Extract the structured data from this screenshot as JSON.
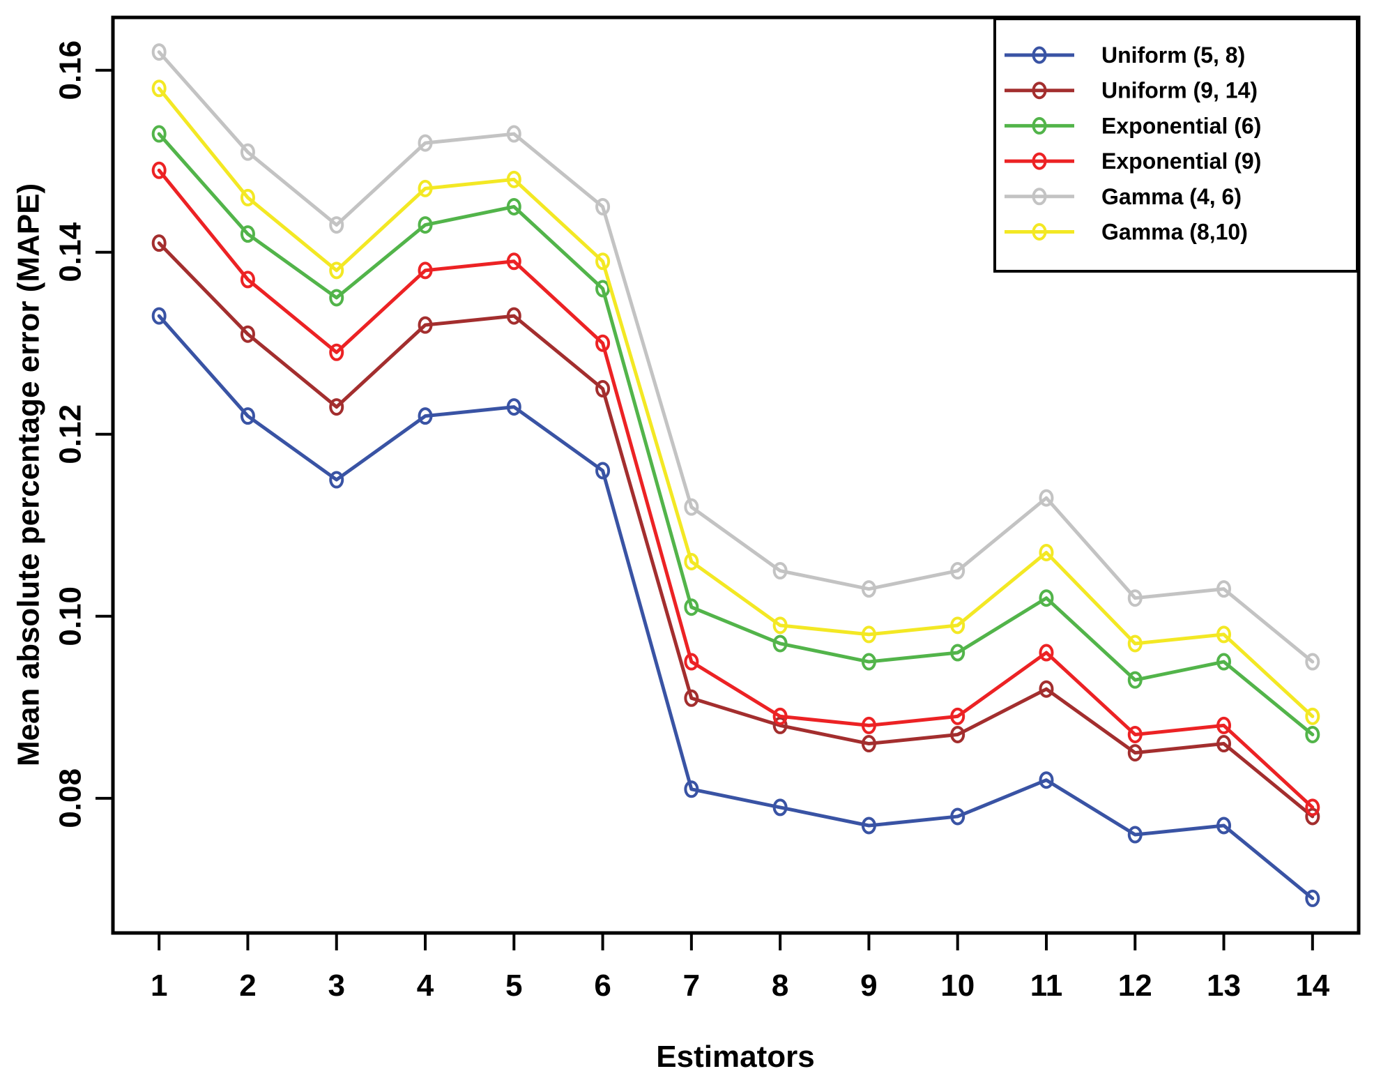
{
  "figure": {
    "background": "#ffffff",
    "axis_color": "#000000"
  },
  "chart_data": {
    "type": "line",
    "title": "",
    "xlabel": "Estimators",
    "ylabel": "Mean absolute percentage error (MAPE)",
    "x": [
      1,
      2,
      3,
      4,
      5,
      6,
      7,
      8,
      9,
      10,
      11,
      12,
      13,
      14
    ],
    "xtick_labels": [
      "1",
      "2",
      "3",
      "4",
      "5",
      "6",
      "7",
      "8",
      "9",
      "10",
      "11",
      "12",
      "13",
      "14"
    ],
    "yticks": [
      0.08,
      0.1,
      0.12,
      0.14,
      0.16
    ],
    "ytick_labels": [
      "0.08",
      "0.10",
      "0.12",
      "0.14",
      "0.16"
    ],
    "xlim": [
      0.48,
      14.52
    ],
    "ylim": [
      0.0652,
      0.1658
    ],
    "grid": false,
    "marker": "open-circle",
    "legend_position": "top-right",
    "series": [
      {
        "name": "Uniform (5, 8)",
        "color": "#3953A4",
        "values": [
          0.133,
          0.122,
          0.115,
          0.122,
          0.123,
          0.116,
          0.081,
          0.079,
          0.077,
          0.078,
          0.082,
          0.076,
          0.077,
          0.069
        ]
      },
      {
        "name": "Uniform (9, 14)",
        "color": "#A32E2E",
        "values": [
          0.141,
          0.131,
          0.123,
          0.132,
          0.133,
          0.125,
          0.091,
          0.088,
          0.086,
          0.087,
          0.092,
          0.085,
          0.086,
          0.078
        ]
      },
      {
        "name": "Exponential (6)",
        "color": "#52B44A",
        "values": [
          0.153,
          0.142,
          0.135,
          0.143,
          0.145,
          0.136,
          0.101,
          0.097,
          0.095,
          0.096,
          0.102,
          0.093,
          0.095,
          0.087
        ]
      },
      {
        "name": "Exponential (9)",
        "color": "#EC2224",
        "values": [
          0.149,
          0.137,
          0.129,
          0.138,
          0.139,
          0.13,
          0.095,
          0.089,
          0.088,
          0.089,
          0.096,
          0.087,
          0.088,
          0.079
        ]
      },
      {
        "name": "Gamma (4, 6)",
        "color": "#C3C3C3",
        "values": [
          0.162,
          0.151,
          0.143,
          0.152,
          0.153,
          0.145,
          0.112,
          0.105,
          0.103,
          0.105,
          0.113,
          0.102,
          0.103,
          0.095
        ]
      },
      {
        "name": "Gamma (8,10)",
        "color": "#F3E824",
        "values": [
          0.158,
          0.146,
          0.138,
          0.147,
          0.148,
          0.139,
          0.106,
          0.099,
          0.098,
          0.099,
          0.107,
          0.097,
          0.098,
          0.089
        ]
      }
    ]
  }
}
